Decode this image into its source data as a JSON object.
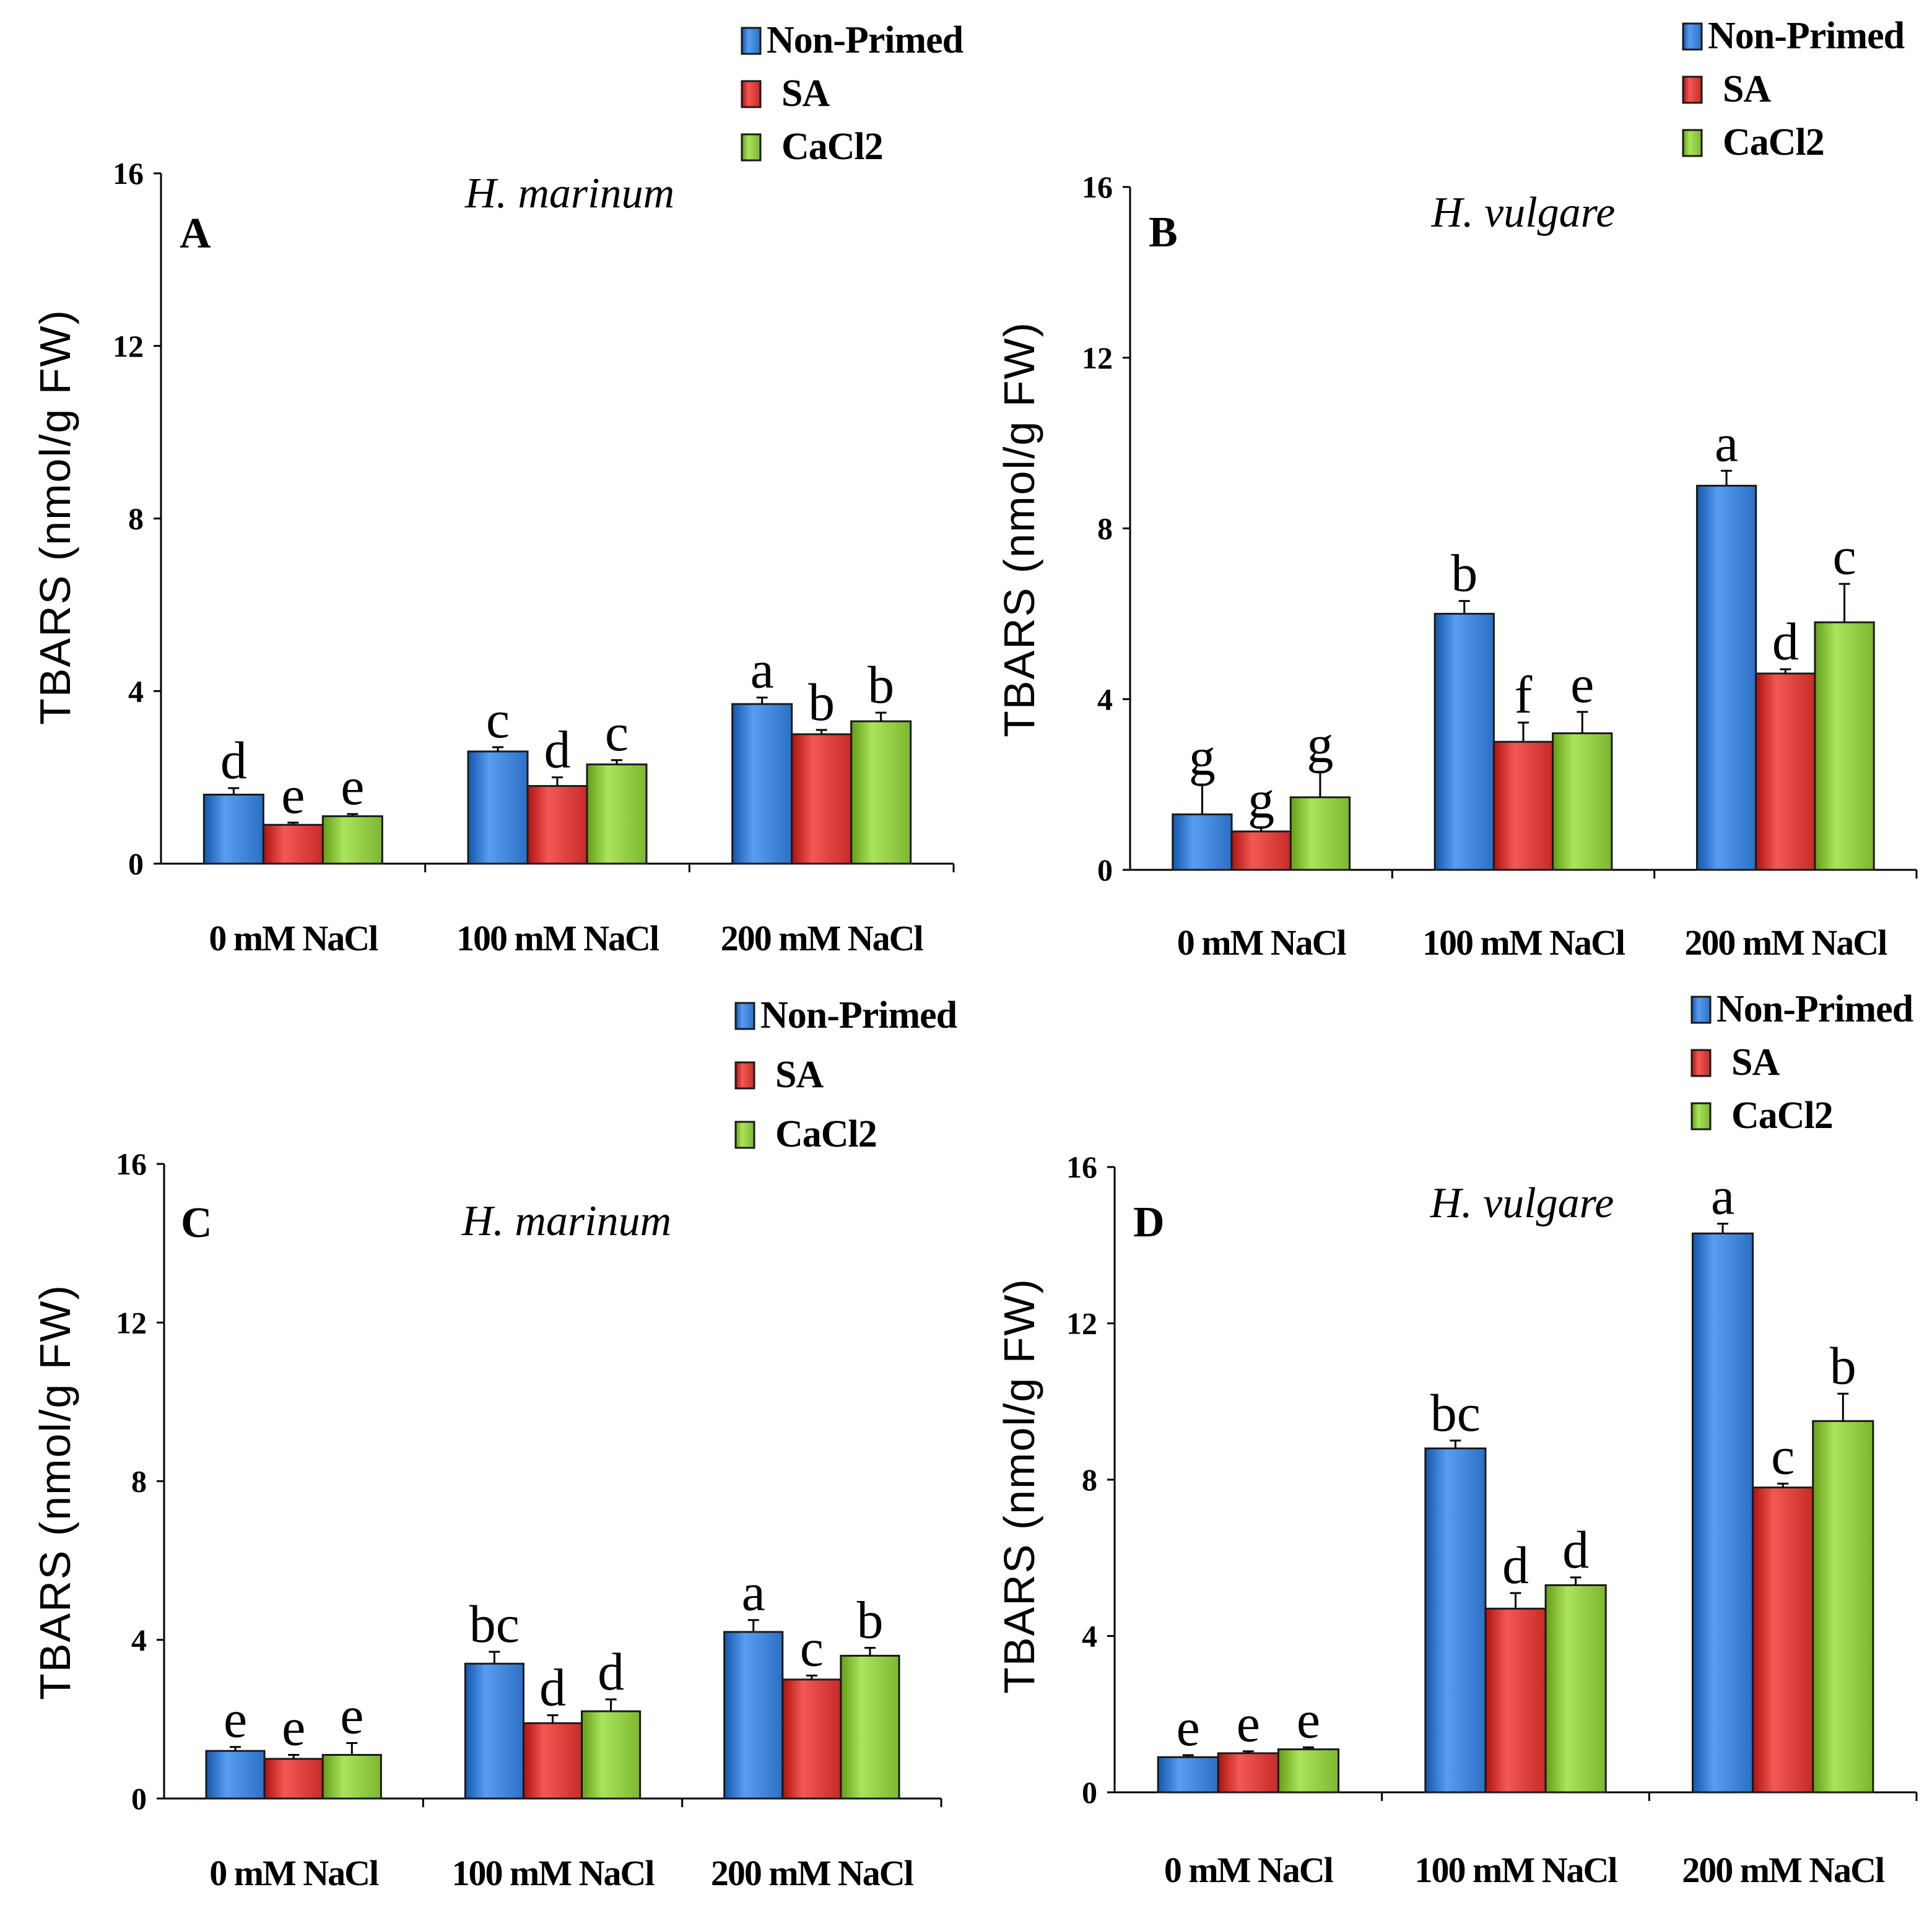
{
  "colors": {
    "Non-Primed": "#3b7fd4",
    "SA": "#d63a37",
    "CaCl2": "#8cc63e"
  },
  "chart_data": [
    {
      "type": "bar",
      "panel": "A",
      "title": "H. marinum",
      "ylabel": "TBARS (nmol/g FW)",
      "ylim": [
        0,
        16
      ],
      "yticks": [
        "0",
        "4",
        "8",
        "12",
        "16"
      ],
      "categories": [
        "0 mM NaCl",
        "100 mM NaCl",
        "200 mM NaCl"
      ],
      "legend": [
        "Non-Primed",
        "SA",
        "CaCl2"
      ],
      "series": [
        {
          "name": "Non-Primed",
          "values": [
            1.6,
            2.6,
            3.7
          ],
          "errors": [
            0.15,
            0.1,
            0.15
          ],
          "labels": [
            "d",
            "c",
            "a"
          ]
        },
        {
          "name": "SA",
          "values": [
            0.9,
            1.8,
            3.0
          ],
          "errors": [
            0.05,
            0.2,
            0.1
          ],
          "labels": [
            "e",
            "d",
            "b"
          ]
        },
        {
          "name": "CaCl2",
          "values": [
            1.1,
            2.3,
            3.3
          ],
          "errors": [
            0.05,
            0.1,
            0.2
          ],
          "labels": [
            "e",
            "c",
            "b"
          ]
        }
      ]
    },
    {
      "type": "bar",
      "panel": "B",
      "title": "H. vulgare",
      "ylabel": "TBARS (nmol/g FW)",
      "ylim": [
        0,
        16
      ],
      "yticks": [
        "0",
        "4",
        "8",
        "12",
        "16"
      ],
      "categories": [
        "0 mM NaCl",
        "100 mM NaCl",
        "200 mM NaCl"
      ],
      "legend": [
        "Non-Primed",
        "SA",
        "CaCl2"
      ],
      "series": [
        {
          "name": "Non-Primed",
          "values": [
            1.3,
            6.0,
            9.0
          ],
          "errors": [
            0.7,
            0.3,
            0.35
          ],
          "labels": [
            "g",
            "b",
            "a"
          ]
        },
        {
          "name": "SA",
          "values": [
            0.9,
            3.0,
            4.6
          ],
          "errors": [
            0.1,
            0.45,
            0.1
          ],
          "labels": [
            "g",
            "f",
            "d"
          ]
        },
        {
          "name": "CaCl2",
          "values": [
            1.7,
            3.2,
            5.8
          ],
          "errors": [
            0.6,
            0.5,
            0.9
          ],
          "labels": [
            "g",
            "e",
            "c"
          ]
        }
      ]
    },
    {
      "type": "bar",
      "panel": "C",
      "title": "H. marinum",
      "ylabel": "TBARS (nmol/g FW)",
      "ylim": [
        0,
        16
      ],
      "yticks": [
        "0",
        "4",
        "8",
        "12",
        "16"
      ],
      "categories": [
        "0 mM NaCl",
        "100 mM NaCl",
        "200 mM NaCl"
      ],
      "legend": [
        "Non-Primed",
        "SA",
        "CaCl2"
      ],
      "series": [
        {
          "name": "Non-Primed",
          "values": [
            1.2,
            3.4,
            4.2
          ],
          "errors": [
            0.1,
            0.3,
            0.3
          ],
          "labels": [
            "e",
            "bc",
            "a"
          ]
        },
        {
          "name": "SA",
          "values": [
            1.0,
            1.9,
            3.0
          ],
          "errors": [
            0.1,
            0.2,
            0.1
          ],
          "labels": [
            "e",
            "d",
            "c"
          ]
        },
        {
          "name": "CaCl2",
          "values": [
            1.1,
            2.2,
            3.6
          ],
          "errors": [
            0.3,
            0.3,
            0.2
          ],
          "labels": [
            "e",
            "d",
            "b"
          ]
        }
      ]
    },
    {
      "type": "bar",
      "panel": "D",
      "title": "H. vulgare",
      "ylabel": "TBARS (nmol/g FW)",
      "ylim": [
        0,
        16
      ],
      "yticks": [
        "0",
        "4",
        "8",
        "12",
        "16"
      ],
      "categories": [
        "0 mM NaCl",
        "100 mM NaCl",
        "200 mM NaCl"
      ],
      "legend": [
        "Non-Primed",
        "SA",
        "CaCl2"
      ],
      "series": [
        {
          "name": "Non-Primed",
          "values": [
            0.9,
            8.8,
            14.3
          ],
          "errors": [
            0.05,
            0.2,
            0.25
          ],
          "labels": [
            "e",
            "bc",
            "a"
          ]
        },
        {
          "name": "SA",
          "values": [
            1.0,
            4.7,
            7.8
          ],
          "errors": [
            0.05,
            0.4,
            0.1
          ],
          "labels": [
            "e",
            "d",
            "c"
          ]
        },
        {
          "name": "CaCl2",
          "values": [
            1.1,
            5.3,
            9.5
          ],
          "errors": [
            0.05,
            0.2,
            0.7
          ],
          "labels": [
            "e",
            "d",
            "b"
          ]
        }
      ]
    }
  ]
}
